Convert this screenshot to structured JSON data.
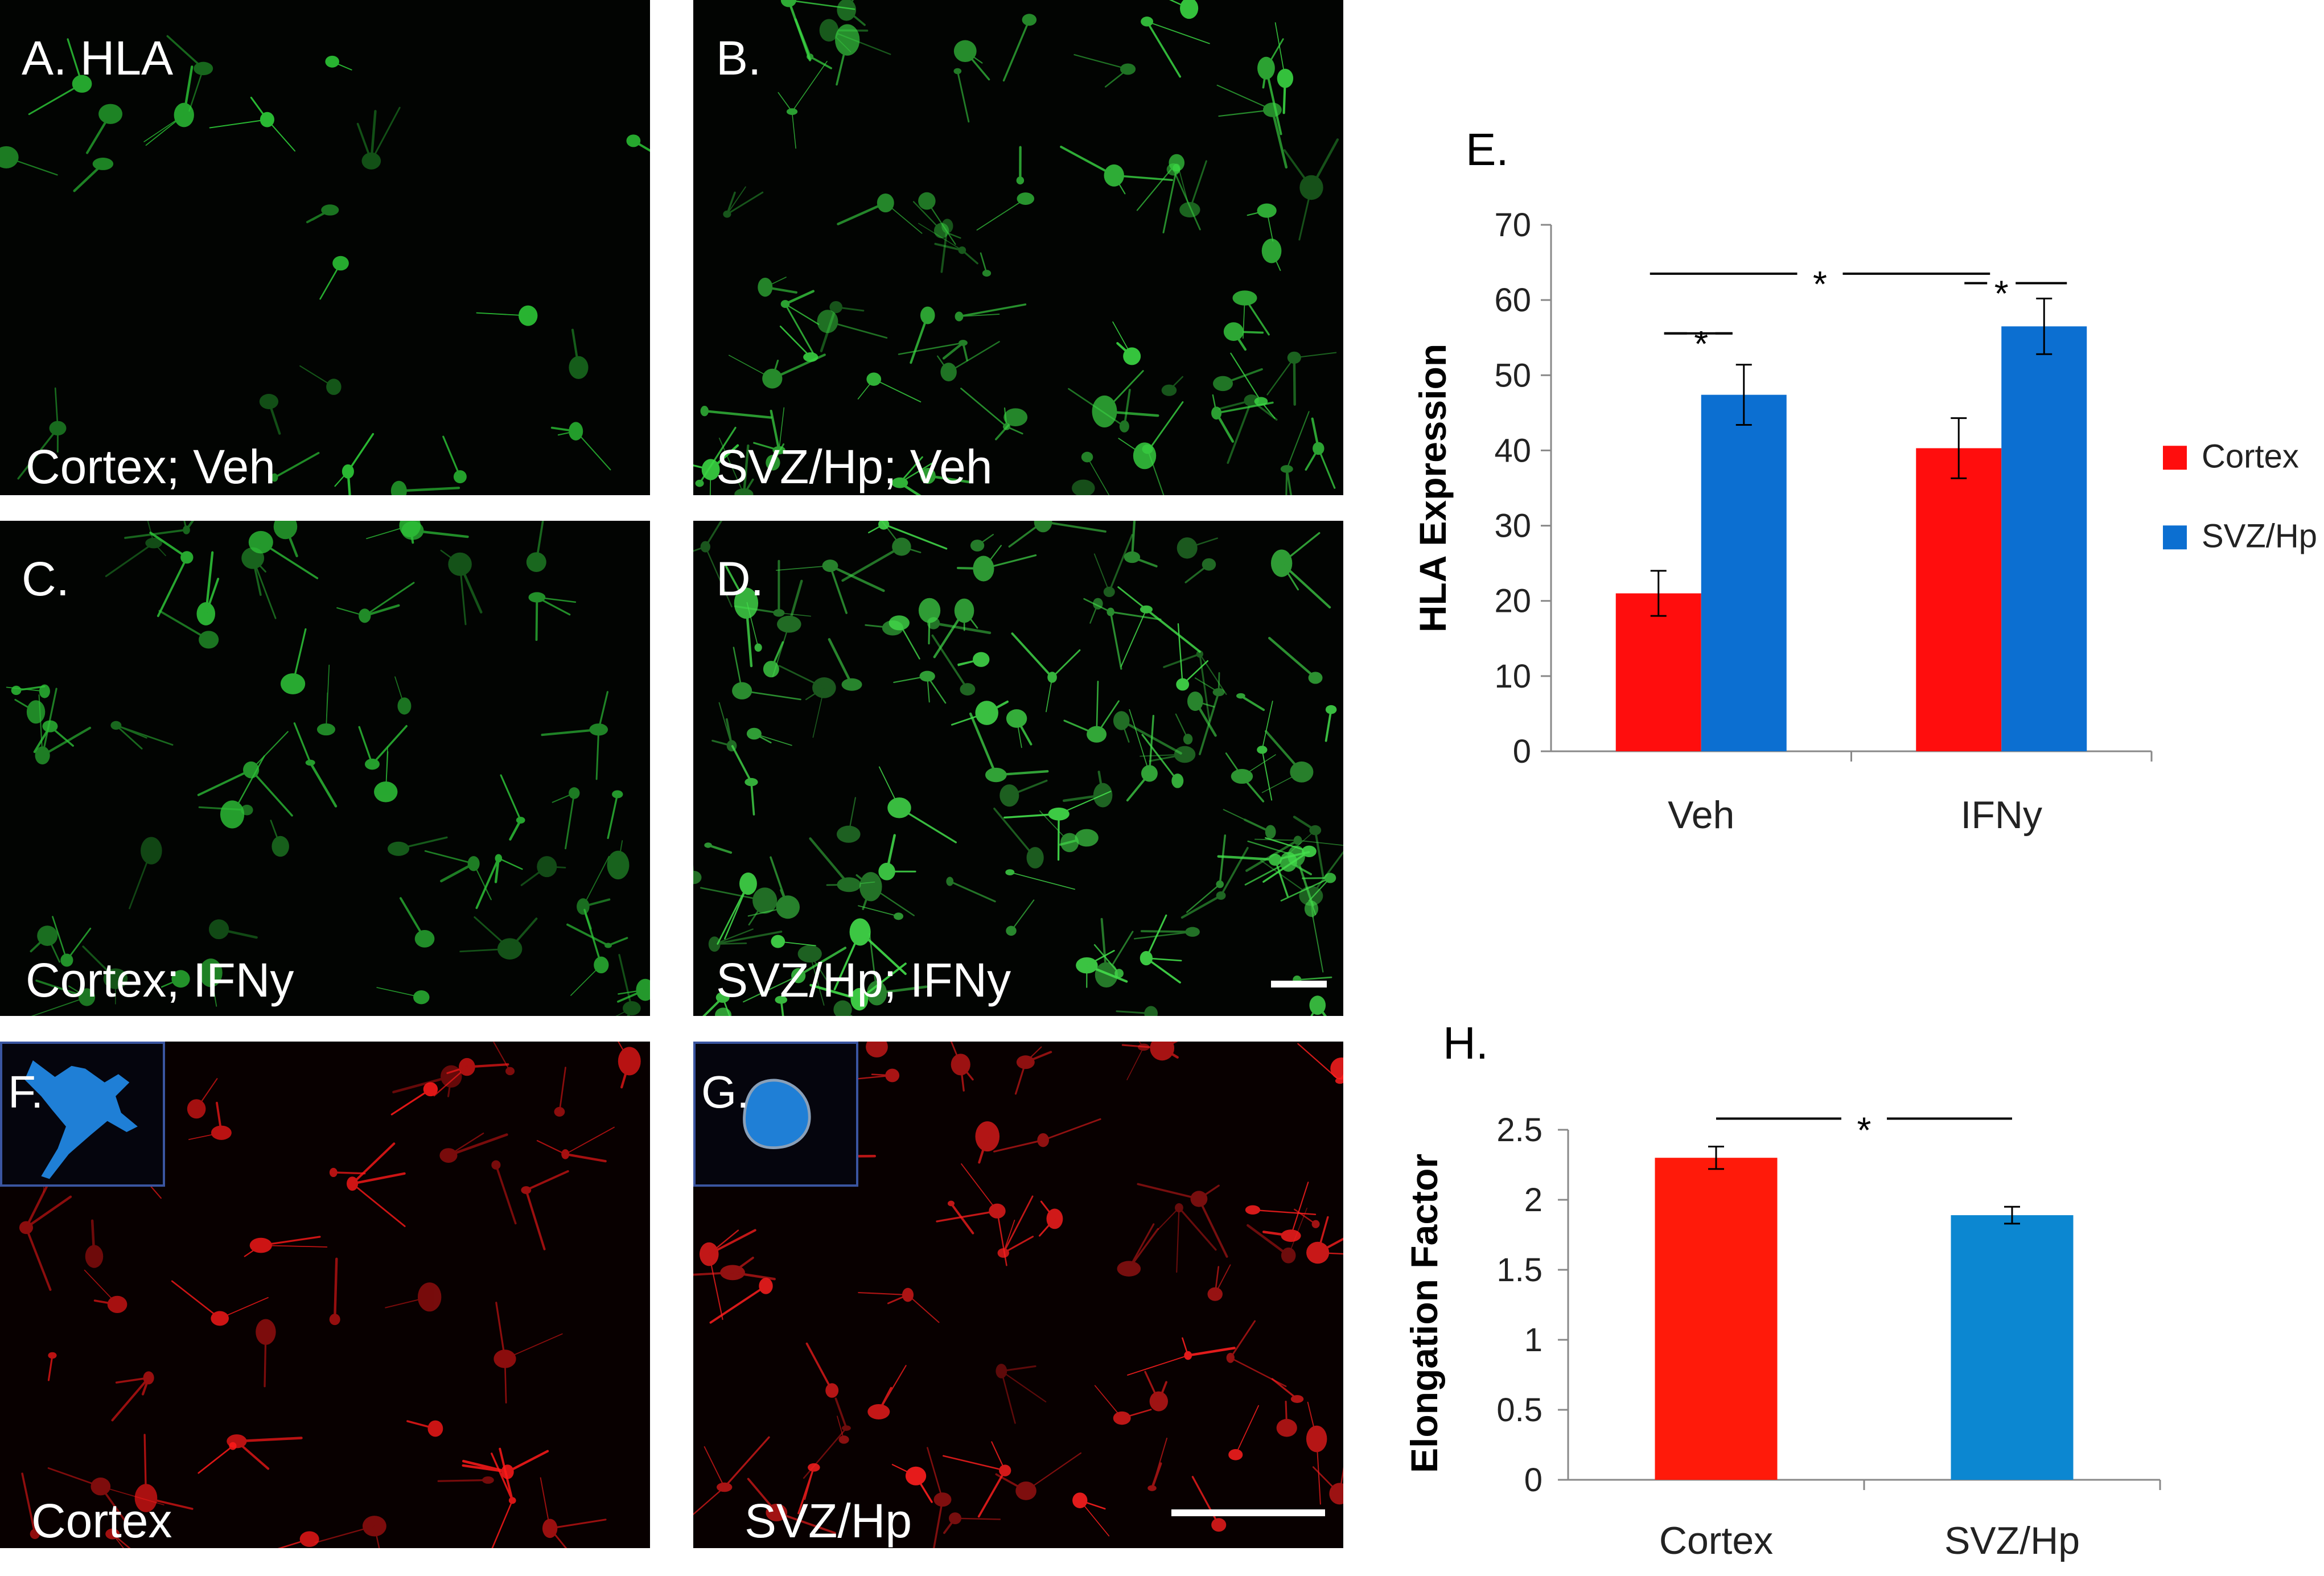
{
  "panels": [
    {
      "id": "A",
      "label": "A. HLA",
      "caption": "Cortex; Veh",
      "color": "#2fd23a",
      "density": 22
    },
    {
      "id": "B",
      "label": "B.",
      "caption": "SVZ/Hp; Veh",
      "color": "#3bd944",
      "density": 70
    },
    {
      "id": "C",
      "label": "C.",
      "caption": "Cortex; IFNy",
      "color": "#2ec238",
      "density": 55
    },
    {
      "id": "D",
      "label": "D.",
      "caption": "SVZ/Hp; IFNy",
      "color": "#44e04c",
      "density": 105
    },
    {
      "id": "F",
      "label": "F.",
      "caption": "Cortex",
      "color": "#ff1a1a",
      "density": 40
    },
    {
      "id": "G",
      "label": "G.",
      "caption": "SVZ/Hp",
      "color": "#ff1f1f",
      "density": 55
    }
  ],
  "inset_colors": {
    "cell": "#1f7fd6"
  },
  "chart_data": [
    {
      "type": "bar",
      "panel_label": "E.",
      "title": "",
      "xlabel": "",
      "ylabel": "HLA Expression",
      "categories": [
        "Veh",
        "IFNy"
      ],
      "series": [
        {
          "name": "Cortex",
          "color": "#ff0d0d",
          "values": [
            21,
            40.3
          ],
          "errors": [
            3,
            4
          ]
        },
        {
          "name": "SVZ/Hp",
          "color": "#0c6fd1",
          "values": [
            47.4,
            56.5
          ],
          "errors": [
            4,
            3.7
          ]
        }
      ],
      "ylim": [
        0,
        70
      ],
      "yticks": [
        0,
        10,
        20,
        30,
        40,
        50,
        60,
        70
      ],
      "legend": "right",
      "significance": [
        "*",
        "*",
        "*"
      ]
    },
    {
      "type": "bar",
      "panel_label": "H.",
      "title": "",
      "xlabel": "",
      "ylabel": "Elongation Factor",
      "categories": [
        "Cortex",
        "SVZ/Hp"
      ],
      "values": [
        2.3,
        1.89
      ],
      "errors": [
        0.08,
        0.06
      ],
      "colors": [
        "#ff1a0a",
        "#0c87d1"
      ],
      "ylim": [
        0,
        2.5
      ],
      "yticks": [
        "0",
        "0.5",
        "1",
        "1.5",
        "2",
        "2.5"
      ],
      "significance": [
        "*"
      ]
    }
  ]
}
